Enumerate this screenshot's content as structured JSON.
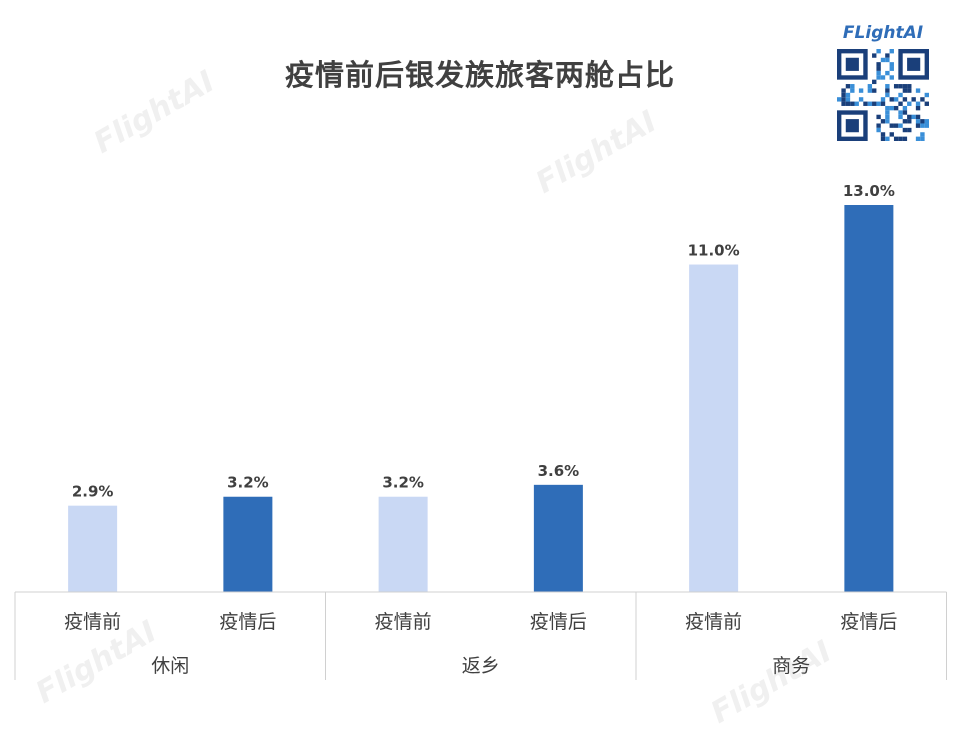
{
  "title": "疫情前后银发族旅客两舱占比",
  "logo": {
    "text": "FLightAI",
    "icon": "qr-code-icon"
  },
  "watermark": "FlightAI",
  "colors": {
    "before": "#c9d8f4",
    "after": "#2f6db8",
    "text": "#404040",
    "axis": "#d0d0d0"
  },
  "chart_data": {
    "type": "bar",
    "title": "疫情前后银发族旅客两舱占比",
    "groups": [
      "休闲",
      "返乡",
      "商务"
    ],
    "categories": [
      "疫情前",
      "疫情后"
    ],
    "series": [
      {
        "group": "休闲",
        "values": [
          2.9,
          3.2
        ],
        "labels": [
          "2.9%",
          "3.2%"
        ]
      },
      {
        "group": "返乡",
        "values": [
          3.2,
          3.6
        ],
        "labels": [
          "3.2%",
          "3.6%"
        ]
      },
      {
        "group": "商务",
        "values": [
          11.0,
          13.0
        ],
        "labels": [
          "11.0%",
          "13.0%"
        ]
      }
    ],
    "ylim": [
      0,
      14
    ],
    "grid": false,
    "legend": "none"
  }
}
